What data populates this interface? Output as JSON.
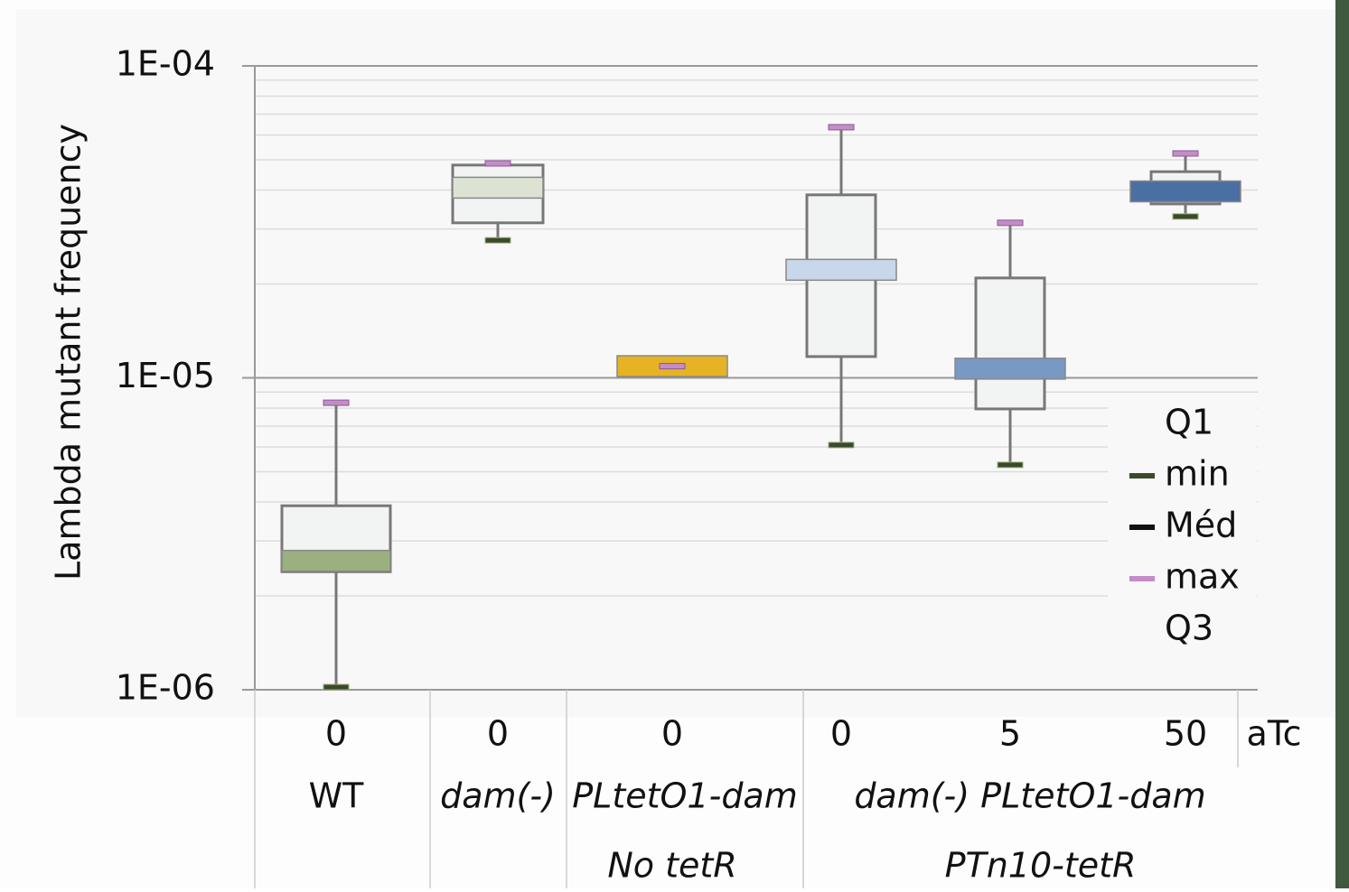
{
  "chart_data": {
    "type": "box",
    "y_label": "Lambda mutant frequency",
    "log_scale": true,
    "minor_grid": true,
    "ylim": [
      1e-06,
      0.0001
    ],
    "yticks": [
      {
        "value": 1e-06,
        "label": "1E-06"
      },
      {
        "value": 1e-05,
        "label": "1E-05"
      },
      {
        "value": 0.0001,
        "label": "1E-04"
      }
    ],
    "categories": [
      "0",
      "0",
      "0",
      "0",
      "5",
      "50"
    ],
    "category_axis_label": "aTc",
    "groups": [
      {
        "label": "WT",
        "span": 1
      },
      {
        "label": "dam(-)",
        "span": 1
      },
      {
        "label": "PLtetO1-dam",
        "span": 1
      },
      {
        "label": "dam(-) PLtetO1-dam",
        "span": 3
      }
    ],
    "subgroups": [
      {
        "label": "No tetR",
        "start": 2,
        "span": 1
      },
      {
        "label": "PTn10-tetR",
        "start": 3,
        "span": 3
      }
    ],
    "boxes": [
      {
        "min": 1.02e-06,
        "q1": 2.39e-06,
        "median": 2.59e-06,
        "q3": 3.89e-06,
        "max": 8.32e-06,
        "color": "#9bb07f"
      },
      {
        "min": 2.76e-05,
        "q1": 3.14e-05,
        "median": 4.07e-05,
        "q3": 4.81e-05,
        "max": 4.87e-05,
        "color": "#dde3d3"
      },
      {
        "min": 1.09e-05,
        "q1": 1.09e-05,
        "median": 1.09e-05,
        "q3": 1.09e-05,
        "max": 1.09e-05,
        "color": "#e6b325"
      },
      {
        "min": 6.09e-06,
        "q1": 1.17e-05,
        "median": 2.22e-05,
        "q3": 3.86e-05,
        "max": 6.36e-05,
        "color": "#c9d7ea"
      },
      {
        "min": 5.26e-06,
        "q1": 7.95e-06,
        "median": 1.07e-05,
        "q3": 2.09e-05,
        "max": 3.14e-05,
        "color": "#7799c4"
      },
      {
        "min": 3.29e-05,
        "q1": 3.61e-05,
        "median": 3.96e-05,
        "q3": 4.58e-05,
        "max": 5.24e-05,
        "color": "#4a6fa5"
      }
    ],
    "legend": [
      "Q1",
      "min",
      "Méd",
      "max",
      "Q3"
    ],
    "legend_colors": {
      "min": "#3b4a2a",
      "Méd": "#111111",
      "max": "#c48cc8"
    }
  }
}
